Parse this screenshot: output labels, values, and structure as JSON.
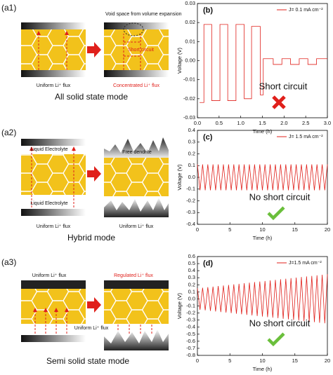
{
  "diagrams": [
    {
      "label": "(a1)",
      "caption": "All solid state mode",
      "texts": [
        "Void space from volume expansion",
        "Short circuit",
        "Uniform Li⁺ flux",
        "Concentrated Li⁺ flux"
      ]
    },
    {
      "label": "(a2)",
      "caption": "Hybrid mode",
      "texts": [
        "Liquid Electrolyte",
        "Free dendrite",
        "Liquid Electrolyte",
        "Uniform Li⁺ flux",
        "Uniform Li⁺ flux"
      ]
    },
    {
      "label": "(a3)",
      "caption": "Semi solid state mode",
      "texts": [
        "Uniform Li⁺ flux",
        "Regulated Li⁺ flux",
        "Uniform Li⁺ flux"
      ]
    }
  ],
  "chart_data": [
    {
      "type": "line",
      "title": "(b)",
      "xlabel": "Time (h)",
      "ylabel": "Voltage (V)",
      "annotation": "Short circuit",
      "legend": "upper right",
      "x": [
        0.05,
        0.15,
        0.15,
        0.33,
        0.33,
        0.52,
        0.52,
        0.7,
        0.7,
        0.89,
        0.89,
        1.08,
        1.08,
        1.25,
        1.25,
        1.45,
        1.45,
        1.52,
        1.52,
        1.75,
        1.75,
        1.95,
        1.95,
        2.15,
        2.15,
        2.35,
        2.35,
        2.55,
        2.55,
        2.75,
        2.75,
        3.0
      ],
      "series": [
        {
          "name": "J= 0.1 mA cm⁻²",
          "color": "#e0201b",
          "values": [
            -0.022,
            -0.022,
            0.019,
            0.019,
            -0.021,
            -0.021,
            0.019,
            0.019,
            -0.021,
            -0.021,
            0.019,
            0.019,
            -0.02,
            -0.02,
            0.018,
            0.018,
            -0.018,
            -0.018,
            0.001,
            0.001,
            -0.002,
            -0.002,
            0.001,
            0.001,
            -0.002,
            -0.002,
            0.001,
            0.001,
            -0.002,
            -0.002,
            0.001,
            0.001
          ]
        }
      ],
      "xlim": [
        0,
        3
      ],
      "ylim": [
        -0.03,
        0.03
      ],
      "xticks": [
        {
          "value": 0,
          "label": "0.0"
        },
        0.5,
        {
          "value": 1,
          "label": "1.0"
        },
        1.5,
        {
          "value": 2,
          "label": "2.0"
        },
        2.5,
        {
          "value": 3,
          "label": "3.0"
        }
      ],
      "yticks": [
        -0.03,
        -0.02,
        -0.01,
        {
          "value": 0,
          "label": "0.00"
        },
        0.01,
        0.02,
        0.03
      ]
    },
    {
      "type": "line",
      "title": "(c)",
      "xlabel": "Time (h)",
      "ylabel": "Voltage (V)",
      "annotation": "No short circuit",
      "legend": "upper right",
      "x": [
        0,
        0.4,
        0.8,
        1.2,
        1.6,
        2,
        2.4,
        2.8,
        3.2,
        3.6,
        4,
        4.4,
        4.8,
        5.2,
        5.6,
        6,
        6.4,
        6.8,
        7.2,
        7.6,
        8,
        8.4,
        8.8,
        9.2,
        9.6,
        10,
        10.4,
        10.8,
        11.2,
        11.6,
        12,
        12.4,
        12.8,
        13.2,
        13.6,
        14,
        14.4,
        14.8,
        15.2,
        15.6,
        16,
        16.4,
        16.8,
        17.2,
        17.6,
        18,
        18.4,
        18.8,
        19.2,
        19.6,
        20
      ],
      "series": [
        {
          "name": "J= 1.5 mA cm⁻²",
          "color": "#e0201b",
          "values": [
            0.11,
            -0.11,
            0.11,
            -0.11,
            0.11,
            -0.11,
            0.11,
            -0.11,
            0.11,
            -0.11,
            0.11,
            -0.11,
            0.11,
            -0.11,
            0.11,
            -0.11,
            0.11,
            -0.11,
            0.11,
            -0.11,
            0.11,
            -0.11,
            0.11,
            -0.11,
            0.11,
            -0.11,
            0.11,
            -0.11,
            0.11,
            -0.11,
            0.11,
            -0.11,
            0.11,
            -0.11,
            0.11,
            -0.11,
            0.11,
            -0.11,
            0.11,
            -0.11,
            0.11,
            -0.11,
            0.11,
            -0.11,
            0.11,
            -0.11,
            0.11,
            -0.11,
            0.11,
            -0.11,
            0.11
          ]
        }
      ],
      "xlim": [
        0,
        20
      ],
      "ylim": [
        -0.4,
        0.4
      ],
      "xticks": [
        0,
        5,
        10,
        15,
        20
      ],
      "yticks": [
        -0.4,
        -0.3,
        -0.2,
        -0.1,
        {
          "value": 0,
          "label": "0.0"
        },
        0.1,
        0.2,
        0.3,
        0.4
      ]
    },
    {
      "type": "line",
      "title": "(d)",
      "xlabel": "Time (h)",
      "ylabel": "Voltage (V)",
      "annotation": "No short circuit",
      "legend": "upper right",
      "x": [
        0,
        0.4,
        0.8,
        1.2,
        1.6,
        2,
        2.4,
        2.8,
        3.2,
        3.6,
        4,
        4.4,
        4.8,
        5.2,
        5.6,
        6,
        6.4,
        6.8,
        7.2,
        7.6,
        8,
        8.4,
        8.8,
        9.2,
        9.6,
        10,
        10.4,
        10.8,
        11.2,
        11.6,
        12,
        12.4,
        12.8,
        13.2,
        13.6,
        14,
        14.4,
        14.8,
        15.2,
        15.6,
        16,
        16.4,
        16.8,
        17.2,
        17.6,
        18,
        18.4,
        18.8,
        19.2,
        19.6,
        20
      ],
      "series": [
        {
          "name": "J=1.5 mA cm⁻²",
          "color": "#e0201b",
          "values": [
            0.15,
            -0.154,
            0.158,
            -0.162,
            0.166,
            -0.17,
            0.174,
            -0.178,
            0.182,
            -0.186,
            0.19,
            -0.194,
            0.198,
            -0.202,
            0.206,
            -0.21,
            0.214,
            -0.218,
            0.222,
            -0.226,
            0.23,
            -0.234,
            0.238,
            -0.242,
            0.246,
            -0.25,
            0.254,
            -0.258,
            0.262,
            -0.266,
            0.27,
            -0.274,
            0.278,
            -0.282,
            0.286,
            -0.29,
            0.294,
            -0.298,
            0.302,
            -0.306,
            0.31,
            -0.314,
            0.318,
            -0.322,
            0.326,
            -0.33,
            0.334,
            -0.338,
            0.342,
            -0.346,
            0.35
          ]
        }
      ],
      "xlim": [
        0,
        20
      ],
      "ylim": [
        -0.8,
        0.6
      ],
      "xticks": [
        0,
        5,
        10,
        15,
        20
      ],
      "yticks": [
        -0.8,
        -0.7,
        -0.6,
        -0.5,
        -0.4,
        -0.3,
        -0.2,
        -0.1,
        {
          "value": 0,
          "label": "0.0"
        },
        0.1,
        0.2,
        0.3,
        0.4,
        0.5,
        0.6
      ]
    }
  ]
}
